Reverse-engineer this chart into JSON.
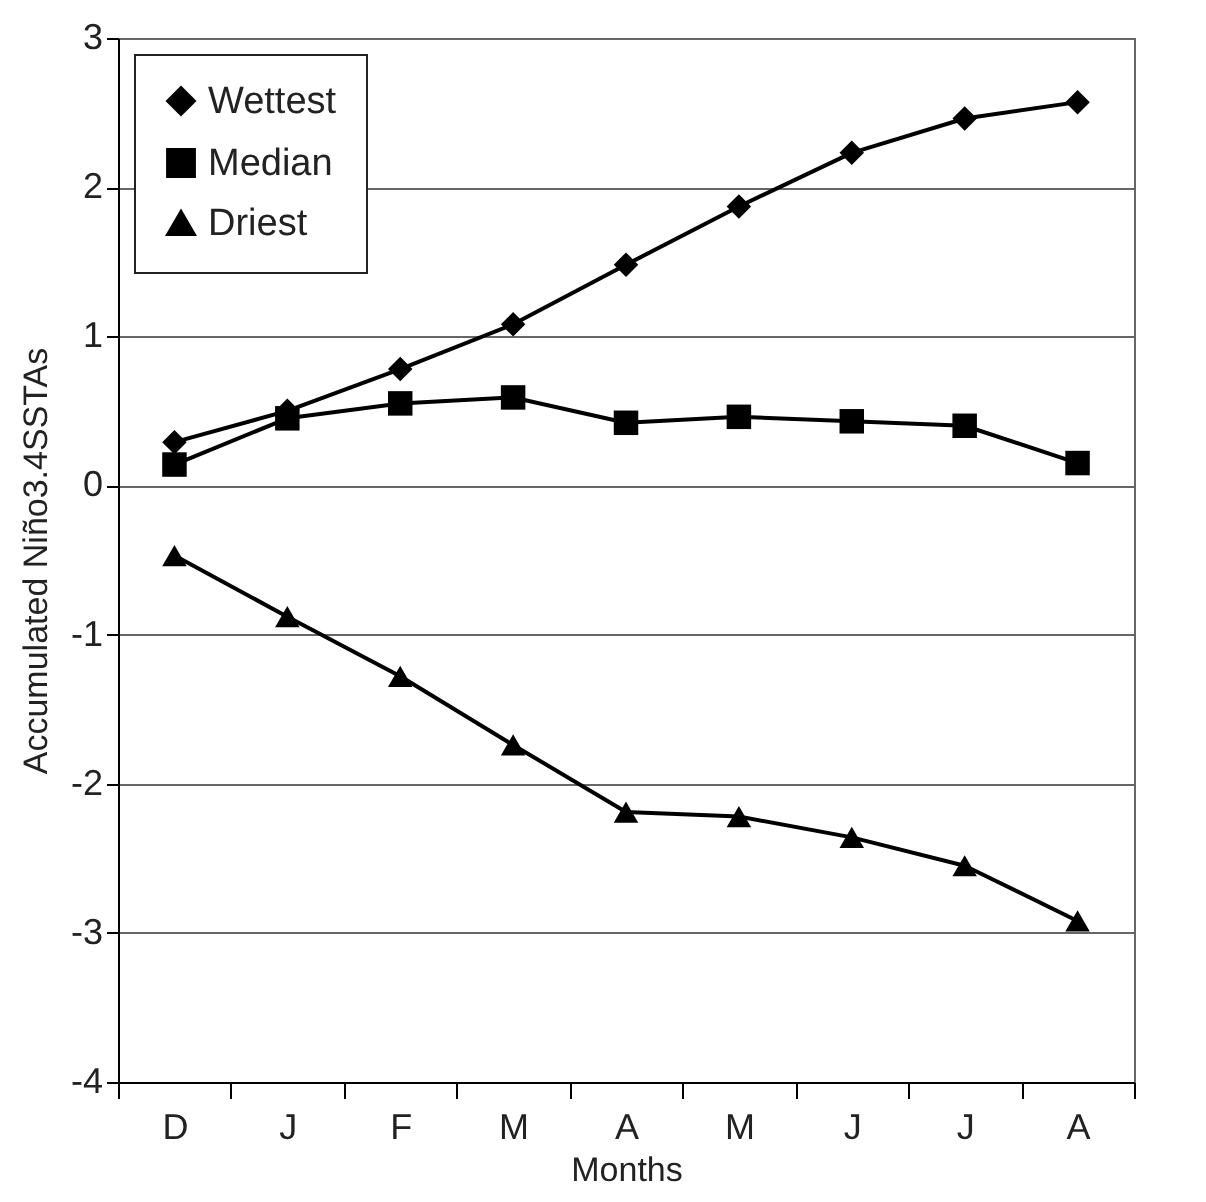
{
  "chart_data": {
    "type": "line",
    "xlabel": "Months",
    "ylabel": "Accumulated Niño3.4SSTAs",
    "categories": [
      "D",
      "J",
      "F",
      "M",
      "A",
      "M",
      "J",
      "J",
      "A"
    ],
    "series": [
      {
        "name": "Wettest",
        "color": "#000000",
        "marker": "diamond",
        "values": [
          0.29,
          0.5,
          0.78,
          1.08,
          1.48,
          1.87,
          2.23,
          2.46,
          2.57
        ]
      },
      {
        "name": "Median",
        "color": "#000000",
        "marker": "square",
        "values": [
          0.14,
          0.45,
          0.55,
          0.59,
          0.42,
          0.46,
          0.43,
          0.4,
          0.15
        ]
      },
      {
        "name": "Driest",
        "color": "#000000",
        "marker": "triangle",
        "values": [
          -0.47,
          -0.88,
          -1.28,
          -1.74,
          -2.19,
          -2.22,
          -2.36,
          -2.55,
          -2.92
        ]
      }
    ],
    "ylim": [
      -4,
      3
    ],
    "yticks": [
      -4,
      -3,
      -2,
      -1,
      0,
      1,
      2,
      3
    ],
    "grid": "y",
    "legend": "top left",
    "line_style": "solid"
  }
}
